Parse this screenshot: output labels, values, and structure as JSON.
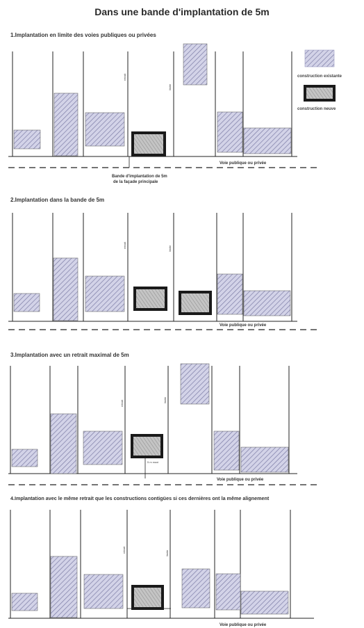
{
  "title": "Dans une bande d'implantation de 5m",
  "legend": {
    "existing": "construction existante",
    "new": "construction neuve"
  },
  "panels": [
    {
      "title": "1.Implantation en limite des voies publiques ou privées",
      "road_label": "Voie publique ou privée",
      "band_label": [
        "Bande d'implantation de 5m",
        "de la façade principale"
      ]
    },
    {
      "title": "2.Implantation dans la bande de 5m",
      "road_label": "Voie publique ou privée"
    },
    {
      "title": "3.Implantation avec un retrait maximal de 5m",
      "road_label": "Voie publique ou privée",
      "dim_label": "5 m maxi"
    },
    {
      "title": "4.Implantation avec le même retrait que les constructions contigües si ces dernières ont la même alignement",
      "road_label": "Voie publique ou privée"
    }
  ],
  "colors": {
    "existing_fill": "#c9c9e2",
    "new_fill": "#bdbdbd",
    "new_border": "#1a1a1a",
    "line": "#222222"
  }
}
